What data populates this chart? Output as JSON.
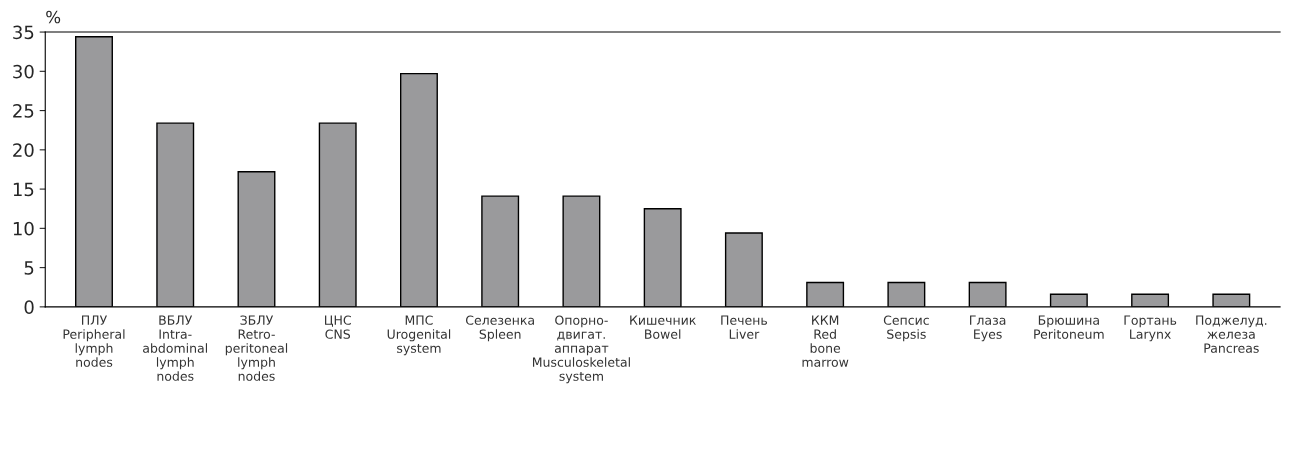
{
  "chart_data": {
    "type": "bar",
    "ylabel": "%",
    "categories": [
      "ПЛУ\nPeripheral\nlymph\nnodes",
      "ВБЛУ\nIntra-\nabdominal\nlymph\nnodes",
      "ЗБЛУ\nRetro-\nperitoneal\nlymph\nnodes",
      "ЦНС\nCNS",
      "МПС\nUrogenital\nsystem",
      "Селезенка\nSpleen",
      "Опорно-\nдвигат.\nаппарат\nMusculoskeletal\nsystem",
      "Кишечник\nBowel",
      "Печень\nLiver",
      "ККМ\nRed\nbone\nmarrow",
      "Сепсис\nSepsis",
      "Глаза\nEyes",
      "Брюшина\nPeritoneum",
      "Гортань\nLarynx",
      "Поджелуд.\nжелеза\nPancreas"
    ],
    "values": [
      34.4,
      23.4,
      17.2,
      23.4,
      29.7,
      14.1,
      14.1,
      12.5,
      9.4,
      3.1,
      3.1,
      3.1,
      1.6,
      1.6,
      1.6
    ],
    "color": "#9a9a9c",
    "ylim": [
      0,
      35
    ],
    "yticks": [
      0,
      5,
      10,
      15,
      20,
      25,
      30,
      35
    ],
    "grid": false
  }
}
